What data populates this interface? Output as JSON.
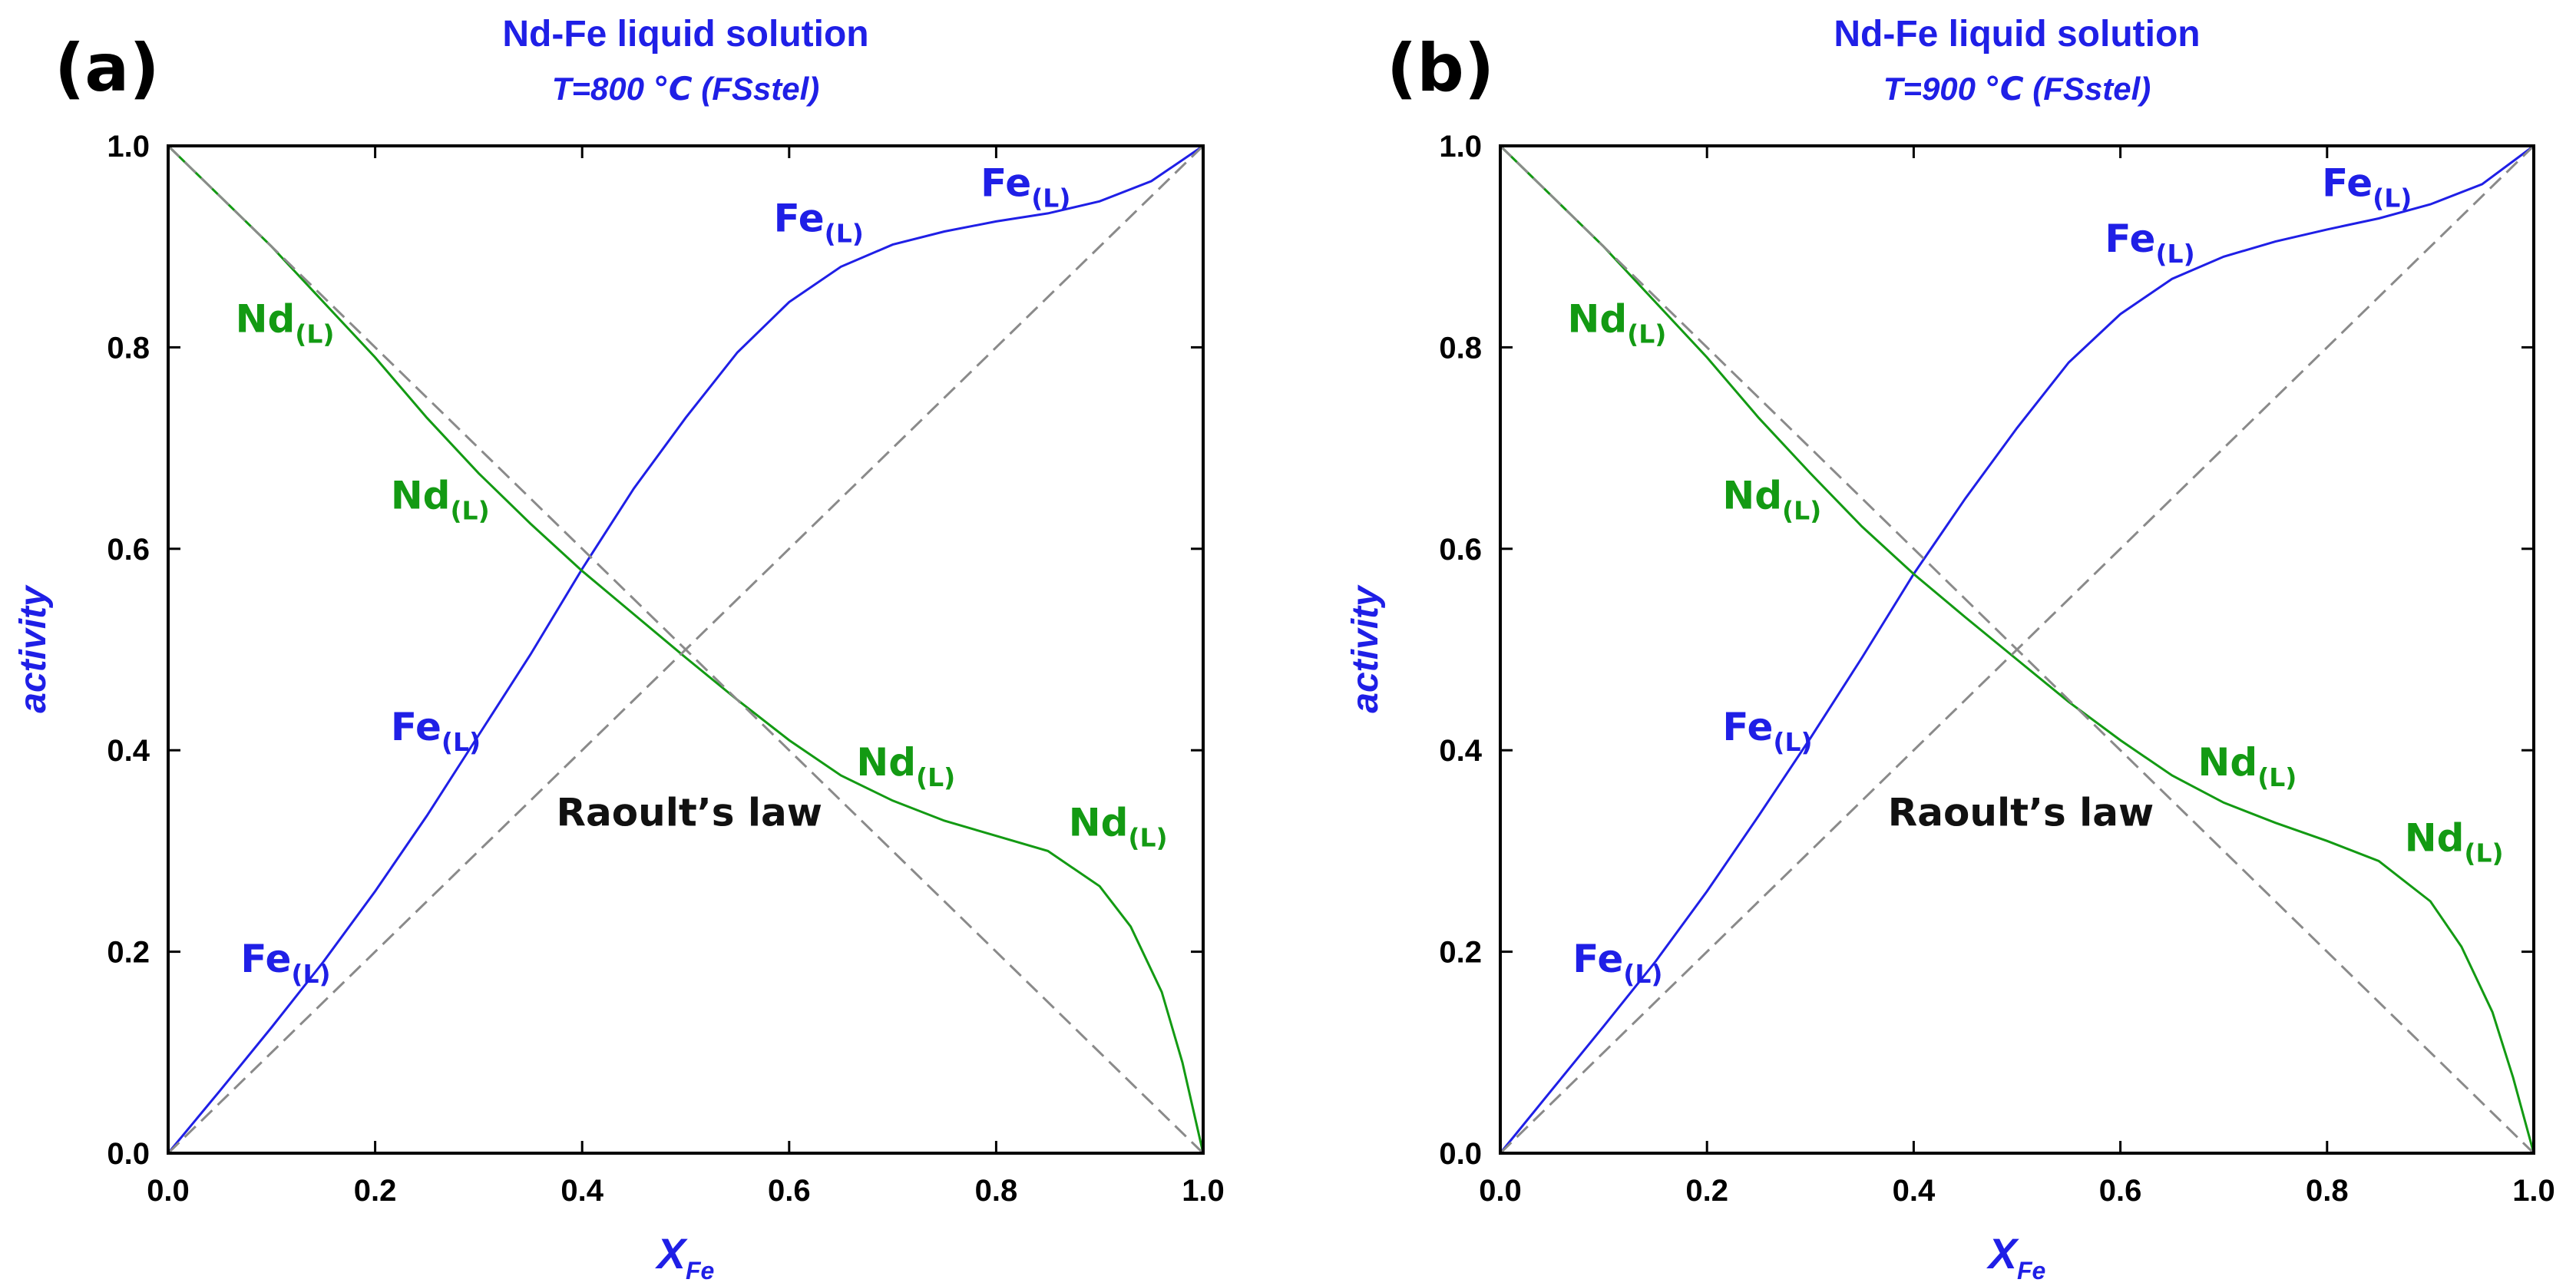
{
  "chart_data": [
    {
      "type": "line",
      "panel_label": "(a)",
      "title": "Nd-Fe liquid solution",
      "subtitle": "T=800 ℃ (FSstel)",
      "xlabel": "X",
      "xlabel_sub": "Fe",
      "ylabel": "activity",
      "xlim": [
        0.0,
        1.0
      ],
      "ylim": [
        0.0,
        1.0
      ],
      "xticks": [
        "0.0",
        "0.2",
        "0.4",
        "0.6",
        "0.8",
        "1.0"
      ],
      "yticks": [
        "0.0",
        "0.2",
        "0.4",
        "0.6",
        "0.8",
        "1.0"
      ],
      "grid": false,
      "series": [
        {
          "name": "Fe(L)",
          "color": "#1f1fe6",
          "x": [
            0.0,
            0.05,
            0.1,
            0.15,
            0.2,
            0.25,
            0.3,
            0.35,
            0.4,
            0.45,
            0.5,
            0.55,
            0.6,
            0.65,
            0.7,
            0.75,
            0.8,
            0.85,
            0.9,
            0.95,
            1.0
          ],
          "y": [
            0.0,
            0.062,
            0.125,
            0.19,
            0.26,
            0.335,
            0.415,
            0.495,
            0.58,
            0.66,
            0.73,
            0.795,
            0.845,
            0.88,
            0.902,
            0.915,
            0.925,
            0.933,
            0.945,
            0.965,
            1.0
          ]
        },
        {
          "name": "Nd(L)",
          "color": "#139a13",
          "x": [
            0.0,
            0.05,
            0.1,
            0.15,
            0.2,
            0.25,
            0.3,
            0.35,
            0.4,
            0.45,
            0.5,
            0.55,
            0.6,
            0.65,
            0.7,
            0.75,
            0.8,
            0.85,
            0.9,
            0.93,
            0.96,
            0.98,
            1.0
          ],
          "y": [
            1.0,
            0.95,
            0.9,
            0.845,
            0.79,
            0.73,
            0.675,
            0.625,
            0.578,
            0.535,
            0.492,
            0.45,
            0.41,
            0.375,
            0.35,
            0.33,
            0.315,
            0.3,
            0.265,
            0.225,
            0.16,
            0.09,
            0.0
          ]
        },
        {
          "name": "Raoult's law (Fe)",
          "color": "#8a8a8a",
          "style": "dashed",
          "x": [
            0.0,
            1.0
          ],
          "y": [
            0.0,
            1.0
          ]
        },
        {
          "name": "Raoult's law (Nd)",
          "color": "#8a8a8a",
          "style": "dashed",
          "x": [
            0.0,
            1.0
          ],
          "y": [
            1.0,
            0.0
          ]
        }
      ],
      "annotations": [
        {
          "text": "Fe",
          "sub": "(L)",
          "kind": "fe",
          "x": 0.07,
          "y": 0.18
        },
        {
          "text": "Fe",
          "sub": "(L)",
          "kind": "fe",
          "x": 0.215,
          "y": 0.41
        },
        {
          "text": "Fe",
          "sub": "(L)",
          "kind": "fe",
          "x": 0.585,
          "y": 0.915
        },
        {
          "text": "Fe",
          "sub": "(L)",
          "kind": "fe",
          "x": 0.785,
          "y": 0.95
        },
        {
          "text": "Nd",
          "sub": "(L)",
          "kind": "nd",
          "x": 0.065,
          "y": 0.815
        },
        {
          "text": "Nd",
          "sub": "(L)",
          "kind": "nd",
          "x": 0.215,
          "y": 0.64
        },
        {
          "text": "Nd",
          "sub": "(L)",
          "kind": "nd",
          "x": 0.665,
          "y": 0.375
        },
        {
          "text": "Nd",
          "sub": "(L)",
          "kind": "nd",
          "x": 0.87,
          "y": 0.315
        },
        {
          "text": "Raoult’s law",
          "sub": "",
          "kind": "raoult",
          "x": 0.375,
          "y": 0.325
        }
      ]
    },
    {
      "type": "line",
      "panel_label": "(b)",
      "title": "Nd-Fe liquid solution",
      "subtitle": "T=900 ℃ (FSstel)",
      "xlabel": "X",
      "xlabel_sub": "Fe",
      "ylabel": "activity",
      "xlim": [
        0.0,
        1.0
      ],
      "ylim": [
        0.0,
        1.0
      ],
      "xticks": [
        "0.0",
        "0.2",
        "0.4",
        "0.6",
        "0.8",
        "1.0"
      ],
      "yticks": [
        "0.0",
        "0.2",
        "0.4",
        "0.6",
        "0.8",
        "1.0"
      ],
      "grid": false,
      "series": [
        {
          "name": "Fe(L)",
          "color": "#1f1fe6",
          "x": [
            0.0,
            0.05,
            0.1,
            0.15,
            0.2,
            0.25,
            0.3,
            0.35,
            0.4,
            0.45,
            0.5,
            0.55,
            0.6,
            0.65,
            0.7,
            0.75,
            0.8,
            0.85,
            0.9,
            0.95,
            1.0
          ],
          "y": [
            0.0,
            0.063,
            0.126,
            0.19,
            0.26,
            0.335,
            0.412,
            0.492,
            0.575,
            0.65,
            0.72,
            0.785,
            0.833,
            0.868,
            0.89,
            0.905,
            0.917,
            0.928,
            0.942,
            0.962,
            1.0
          ]
        },
        {
          "name": "Nd(L)",
          "color": "#139a13",
          "x": [
            0.0,
            0.05,
            0.1,
            0.15,
            0.2,
            0.25,
            0.3,
            0.35,
            0.4,
            0.45,
            0.5,
            0.55,
            0.6,
            0.65,
            0.7,
            0.75,
            0.8,
            0.85,
            0.9,
            0.93,
            0.96,
            0.98,
            1.0
          ],
          "y": [
            1.0,
            0.95,
            0.9,
            0.845,
            0.79,
            0.73,
            0.675,
            0.622,
            0.575,
            0.532,
            0.49,
            0.448,
            0.41,
            0.375,
            0.348,
            0.328,
            0.31,
            0.29,
            0.25,
            0.205,
            0.14,
            0.075,
            0.0
          ]
        },
        {
          "name": "Raoult's law (Fe)",
          "color": "#8a8a8a",
          "style": "dashed",
          "x": [
            0.0,
            1.0
          ],
          "y": [
            0.0,
            1.0
          ]
        },
        {
          "name": "Raoult's law (Nd)",
          "color": "#8a8a8a",
          "style": "dashed",
          "x": [
            0.0,
            1.0
          ],
          "y": [
            1.0,
            0.0
          ]
        }
      ],
      "annotations": [
        {
          "text": "Fe",
          "sub": "(L)",
          "kind": "fe",
          "x": 0.07,
          "y": 0.18
        },
        {
          "text": "Fe",
          "sub": "(L)",
          "kind": "fe",
          "x": 0.215,
          "y": 0.41
        },
        {
          "text": "Fe",
          "sub": "(L)",
          "kind": "fe",
          "x": 0.585,
          "y": 0.895
        },
        {
          "text": "Fe",
          "sub": "(L)",
          "kind": "fe",
          "x": 0.795,
          "y": 0.95
        },
        {
          "text": "Nd",
          "sub": "(L)",
          "kind": "nd",
          "x": 0.065,
          "y": 0.815
        },
        {
          "text": "Nd",
          "sub": "(L)",
          "kind": "nd",
          "x": 0.215,
          "y": 0.64
        },
        {
          "text": "Nd",
          "sub": "(L)",
          "kind": "nd",
          "x": 0.675,
          "y": 0.375
        },
        {
          "text": "Nd",
          "sub": "(L)",
          "kind": "nd",
          "x": 0.875,
          "y": 0.3
        },
        {
          "text": "Raoult’s law",
          "sub": "",
          "kind": "raoult",
          "x": 0.375,
          "y": 0.325
        }
      ]
    }
  ]
}
